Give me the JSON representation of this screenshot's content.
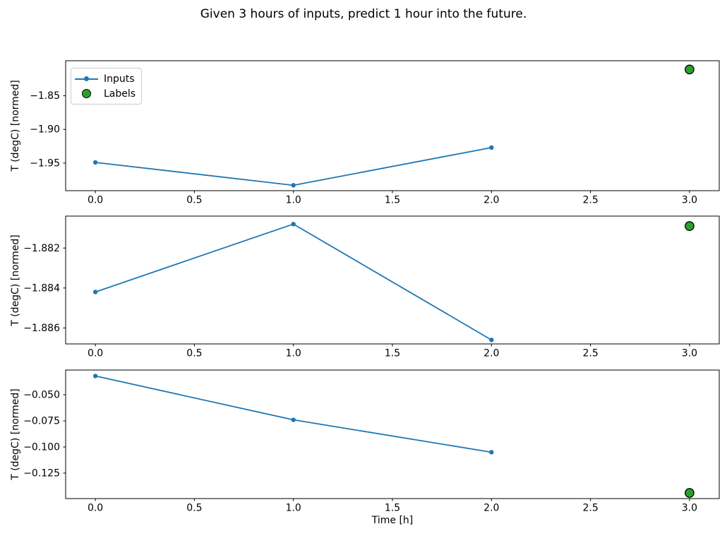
{
  "figure": {
    "title": "Given 3 hours of inputs, predict 1 hour into the future.",
    "background": "#ffffff"
  },
  "colors": {
    "inputs_line": "#1f77b4",
    "labels_fill": "#2ca02c",
    "labels_edge": "#000000",
    "axes": "#000000",
    "text": "#000000",
    "legend_border": "#cccccc"
  },
  "legend": {
    "location": "upper left",
    "items": [
      {
        "label": "Inputs",
        "marker": "line-with-dot",
        "color": "#1f77b4"
      },
      {
        "label": "Labels",
        "marker": "circle",
        "fill": "#2ca02c",
        "edge": "#000000"
      }
    ]
  },
  "chart_data": [
    {
      "type": "line",
      "title": "",
      "xlabel": "",
      "ylabel": "T (degC) [normed]",
      "xlim": [
        -0.15,
        3.15
      ],
      "ylim": [
        -1.991,
        -1.798
      ],
      "xticks": [
        0,
        0.5,
        1,
        1.5,
        2,
        2.5,
        3
      ],
      "xtick_labels": [
        "0.0",
        "0.5",
        "1.0",
        "1.5",
        "2.0",
        "2.5",
        "3.0"
      ],
      "yticks": [
        -1.85,
        -1.9,
        -1.95
      ],
      "ytick_labels": [
        "−1.85",
        "−1.90",
        "−1.95"
      ],
      "grid": false,
      "legend_visible": true,
      "series": [
        {
          "name": "Inputs",
          "type": "line",
          "x": [
            0,
            1,
            2
          ],
          "y": [
            -1.949,
            -1.983,
            -1.927
          ]
        },
        {
          "name": "Labels",
          "type": "scatter",
          "x": [
            3
          ],
          "y": [
            -1.811
          ]
        }
      ]
    },
    {
      "type": "line",
      "title": "",
      "xlabel": "",
      "ylabel": "T (degC) [normed]",
      "xlim": [
        -0.15,
        3.15
      ],
      "ylim": [
        -1.8868,
        -1.8804
      ],
      "xticks": [
        0,
        0.5,
        1,
        1.5,
        2,
        2.5,
        3
      ],
      "xtick_labels": [
        "0.0",
        "0.5",
        "1.0",
        "1.5",
        "2.0",
        "2.5",
        "3.0"
      ],
      "yticks": [
        -1.882,
        -1.884,
        -1.886
      ],
      "ytick_labels": [
        "−1.882",
        "−1.884",
        "−1.886"
      ],
      "grid": false,
      "legend_visible": false,
      "series": [
        {
          "name": "Inputs",
          "type": "line",
          "x": [
            0,
            1,
            2
          ],
          "y": [
            -1.8842,
            -1.8808,
            -1.8866
          ]
        },
        {
          "name": "Labels",
          "type": "scatter",
          "x": [
            3
          ],
          "y": [
            -1.8809
          ]
        }
      ]
    },
    {
      "type": "line",
      "title": "",
      "xlabel": "Time [h]",
      "ylabel": "T (degC) [normed]",
      "xlim": [
        -0.15,
        3.15
      ],
      "ylim": [
        -0.1494,
        -0.0263
      ],
      "xticks": [
        0,
        0.5,
        1,
        1.5,
        2,
        2.5,
        3
      ],
      "xtick_labels": [
        "0.0",
        "0.5",
        "1.0",
        "1.5",
        "2.0",
        "2.5",
        "3.0"
      ],
      "yticks": [
        -0.05,
        -0.075,
        -0.1,
        -0.125
      ],
      "ytick_labels": [
        "−0.050",
        "−0.075",
        "−0.100",
        "−0.125"
      ],
      "grid": false,
      "legend_visible": false,
      "series": [
        {
          "name": "Inputs",
          "type": "line",
          "x": [
            0,
            1,
            2
          ],
          "y": [
            -0.032,
            -0.074,
            -0.105
          ]
        },
        {
          "name": "Labels",
          "type": "scatter",
          "x": [
            3
          ],
          "y": [
            -0.144
          ]
        }
      ]
    }
  ]
}
